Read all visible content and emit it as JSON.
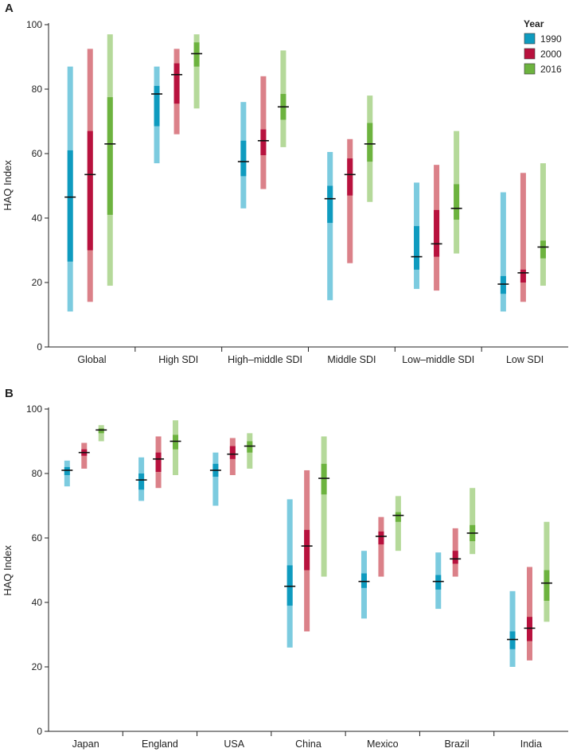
{
  "figure": {
    "legend": {
      "title": "Year",
      "items": [
        {
          "label": "1990",
          "color": "#0f9bbf",
          "light": "#7ccbdf"
        },
        {
          "label": "2000",
          "color": "#b8123e",
          "light": "#db8189"
        },
        {
          "label": "2016",
          "color": "#6db33f",
          "light": "#b5d99a"
        }
      ]
    }
  },
  "chart_data": [
    {
      "type": "range-bar",
      "panel_label": "A",
      "ylabel": "HAQ Index",
      "ylim": [
        0,
        100
      ],
      "yticks": [
        "0",
        "20",
        "40",
        "60",
        "80",
        "100"
      ],
      "series_names": [
        "1990",
        "2000",
        "2016"
      ],
      "categories": [
        {
          "name": "Global",
          "series": [
            {
              "min": 11,
              "max": 87,
              "q1": 26.5,
              "q3": 61,
              "median": 46.5
            },
            {
              "min": 14,
              "max": 92.5,
              "q1": 30,
              "q3": 67,
              "median": 53.5
            },
            {
              "min": 19,
              "max": 97,
              "q1": 41,
              "q3": 77.5,
              "median": 63
            }
          ]
        },
        {
          "name": "High SDI",
          "series": [
            {
              "min": 57,
              "max": 87,
              "q1": 68.5,
              "q3": 81,
              "median": 78.5
            },
            {
              "min": 66,
              "max": 92.5,
              "q1": 75.5,
              "q3": 88,
              "median": 84.5
            },
            {
              "min": 74,
              "max": 97,
              "q1": 87,
              "q3": 94.5,
              "median": 91
            }
          ]
        },
        {
          "name": "High–middle SDI",
          "series": [
            {
              "min": 43,
              "max": 76,
              "q1": 53,
              "q3": 64,
              "median": 57.5
            },
            {
              "min": 49,
              "max": 84,
              "q1": 59.5,
              "q3": 67.5,
              "median": 64
            },
            {
              "min": 62,
              "max": 92,
              "q1": 70.5,
              "q3": 78.5,
              "median": 74.5
            }
          ]
        },
        {
          "name": "Middle SDI",
          "series": [
            {
              "min": 14.5,
              "max": 60.5,
              "q1": 38.5,
              "q3": 50,
              "median": 46
            },
            {
              "min": 26,
              "max": 64.5,
              "q1": 47,
              "q3": 58.5,
              "median": 53.5
            },
            {
              "min": 45,
              "max": 78,
              "q1": 57.5,
              "q3": 69.5,
              "median": 63
            }
          ]
        },
        {
          "name": "Low–middle SDI",
          "series": [
            {
              "min": 18,
              "max": 51,
              "q1": 24,
              "q3": 37.5,
              "median": 28
            },
            {
              "min": 17.5,
              "max": 56.5,
              "q1": 28,
              "q3": 42.5,
              "median": 32
            },
            {
              "min": 29,
              "max": 67,
              "q1": 39.5,
              "q3": 50.5,
              "median": 43
            }
          ]
        },
        {
          "name": "Low SDI",
          "series": [
            {
              "min": 11,
              "max": 48,
              "q1": 16.5,
              "q3": 22,
              "median": 19.5
            },
            {
              "min": 14,
              "max": 54,
              "q1": 20,
              "q3": 24,
              "median": 23
            },
            {
              "min": 19,
              "max": 57,
              "q1": 27.5,
              "q3": 33,
              "median": 31
            }
          ]
        }
      ]
    },
    {
      "type": "range-bar",
      "panel_label": "B",
      "ylabel": "HAQ Index",
      "ylim": [
        0,
        100
      ],
      "yticks": [
        "0",
        "20",
        "40",
        "60",
        "80",
        "100"
      ],
      "series_names": [
        "1990",
        "2000",
        "2016"
      ],
      "categories": [
        {
          "name": "Japan",
          "series": [
            {
              "min": 76,
              "max": 84,
              "q1": 79.5,
              "q3": 82,
              "median": 81
            },
            {
              "min": 81.5,
              "max": 89.5,
              "q1": 85.5,
              "q3": 87.5,
              "median": 86.5
            },
            {
              "min": 90,
              "max": 95,
              "q1": 92.5,
              "q3": 94,
              "median": 93.5
            }
          ]
        },
        {
          "name": "England",
          "series": [
            {
              "min": 71.5,
              "max": 85,
              "q1": 75,
              "q3": 80,
              "median": 78
            },
            {
              "min": 75.5,
              "max": 91.5,
              "q1": 80.5,
              "q3": 86.5,
              "median": 84.5
            },
            {
              "min": 79.5,
              "max": 96.5,
              "q1": 87.5,
              "q3": 92,
              "median": 90
            }
          ]
        },
        {
          "name": "USA",
          "series": [
            {
              "min": 70,
              "max": 86.5,
              "q1": 79,
              "q3": 83,
              "median": 81
            },
            {
              "min": 79.5,
              "max": 91,
              "q1": 84.5,
              "q3": 88.5,
              "median": 86
            },
            {
              "min": 81.5,
              "max": 92.5,
              "q1": 86.5,
              "q3": 90,
              "median": 88.5
            }
          ]
        },
        {
          "name": "China",
          "series": [
            {
              "min": 26,
              "max": 72,
              "q1": 39,
              "q3": 51.5,
              "median": 45
            },
            {
              "min": 31,
              "max": 81,
              "q1": 50,
              "q3": 62.5,
              "median": 57.5
            },
            {
              "min": 48,
              "max": 91.5,
              "q1": 73.5,
              "q3": 83,
              "median": 78.5
            }
          ]
        },
        {
          "name": "Mexico",
          "series": [
            {
              "min": 35,
              "max": 56,
              "q1": 44.5,
              "q3": 49,
              "median": 46.5
            },
            {
              "min": 48,
              "max": 66.5,
              "q1": 58,
              "q3": 62,
              "median": 60.5
            },
            {
              "min": 56,
              "max": 73,
              "q1": 65,
              "q3": 68,
              "median": 67
            }
          ]
        },
        {
          "name": "Brazil",
          "series": [
            {
              "min": 38,
              "max": 55.5,
              "q1": 44,
              "q3": 48.5,
              "median": 46.5
            },
            {
              "min": 48,
              "max": 63,
              "q1": 52,
              "q3": 56,
              "median": 53.5
            },
            {
              "min": 55,
              "max": 75.5,
              "q1": 59,
              "q3": 64,
              "median": 61.5
            }
          ]
        },
        {
          "name": "India",
          "series": [
            {
              "min": 20,
              "max": 43.5,
              "q1": 25.5,
              "q3": 31,
              "median": 28.5
            },
            {
              "min": 22,
              "max": 51,
              "q1": 28,
              "q3": 35.5,
              "median": 32
            },
            {
              "min": 34,
              "max": 65,
              "q1": 40.5,
              "q3": 50,
              "median": 46
            }
          ]
        }
      ]
    }
  ]
}
